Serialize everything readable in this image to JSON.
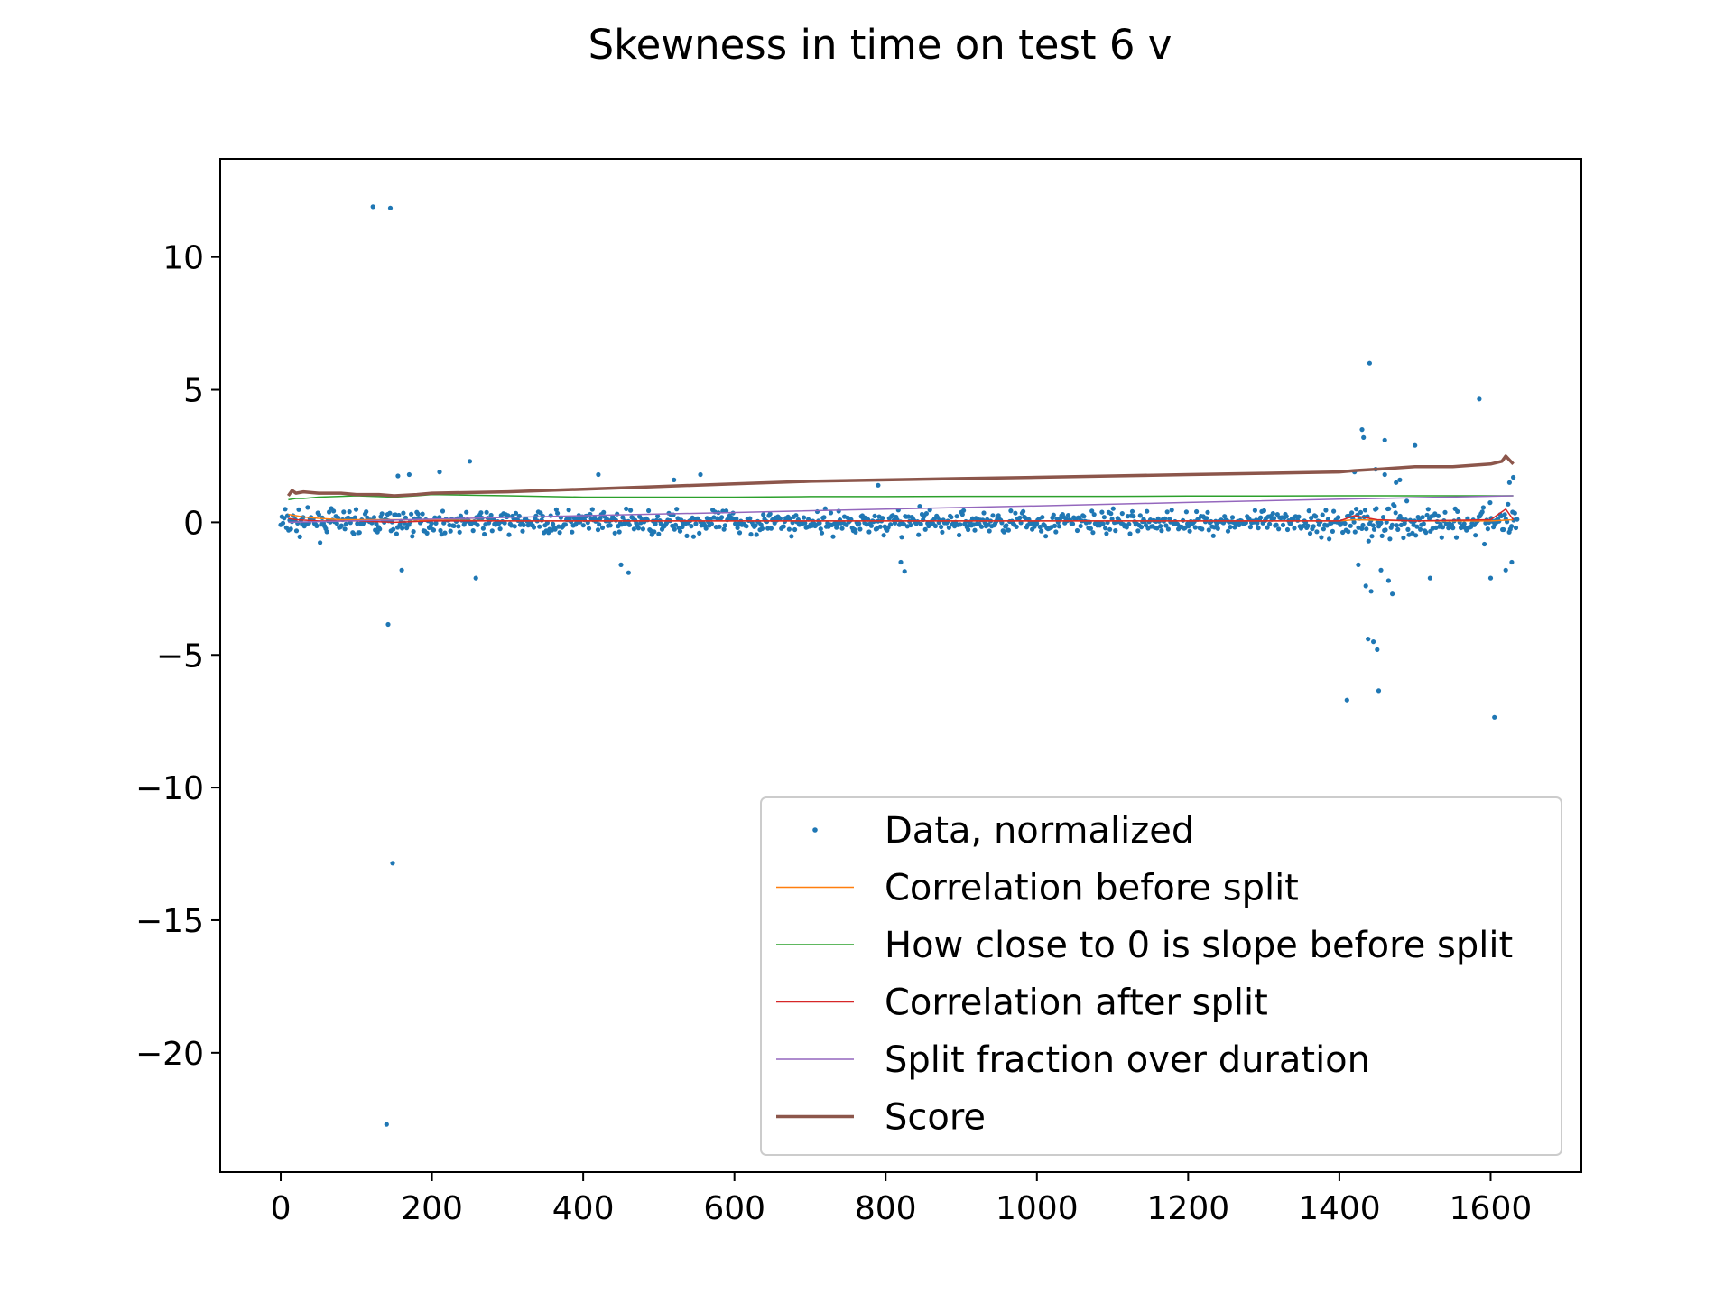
{
  "chart_data": {
    "type": "scatter",
    "title": "Skewness in time on test 6 v",
    "xlabel": "",
    "ylabel": "",
    "xlim": [
      -80,
      1720
    ],
    "ylim": [
      -24.5,
      13.7
    ],
    "xticks": [
      0,
      200,
      400,
      600,
      800,
      1000,
      1200,
      1400,
      1600
    ],
    "xtick_labels": [
      "0",
      "200",
      "400",
      "600",
      "800",
      "1000",
      "1200",
      "1400",
      "1600"
    ],
    "yticks": [
      10,
      5,
      0,
      -5,
      -10,
      -15,
      -20
    ],
    "ytick_labels": [
      "10",
      "5",
      "0",
      "−5",
      "−10",
      "−15",
      "−20"
    ],
    "legend_position": "lower-right",
    "grid": false,
    "series": [
      {
        "name": "Data, normalized",
        "kind": "scatter",
        "color": "#1f77b4",
        "band": {
          "x_start": 0,
          "x_end": 1635,
          "count": 1100,
          "center": 0.0,
          "spread": 0.45
        },
        "outliers": [
          [
            122,
            11.9
          ],
          [
            145,
            11.85
          ],
          [
            142,
            -3.85
          ],
          [
            148,
            -12.85
          ],
          [
            140,
            -22.7
          ],
          [
            155,
            1.75
          ],
          [
            170,
            1.8
          ],
          [
            160,
            -1.8
          ],
          [
            210,
            1.9
          ],
          [
            250,
            2.3
          ],
          [
            258,
            -2.1
          ],
          [
            420,
            1.8
          ],
          [
            450,
            -1.6
          ],
          [
            460,
            -1.9
          ],
          [
            520,
            1.6
          ],
          [
            555,
            1.8
          ],
          [
            790,
            1.4
          ],
          [
            820,
            -1.5
          ],
          [
            825,
            -1.85
          ],
          [
            1410,
            -6.7
          ],
          [
            1430,
            3.5
          ],
          [
            1432,
            3.2
          ],
          [
            1440,
            6.0
          ],
          [
            1445,
            -4.5
          ],
          [
            1450,
            -4.8
          ],
          [
            1452,
            -6.35
          ],
          [
            1438,
            -4.4
          ],
          [
            1435,
            -2.4
          ],
          [
            1442,
            -2.6
          ],
          [
            1448,
            2.0
          ],
          [
            1460,
            3.1
          ],
          [
            1465,
            -2.2
          ],
          [
            1470,
            -2.7
          ],
          [
            1480,
            1.6
          ],
          [
            1500,
            2.9
          ],
          [
            1520,
            -2.1
          ],
          [
            1460,
            1.8
          ],
          [
            1475,
            1.5
          ],
          [
            1455,
            -1.8
          ],
          [
            1420,
            1.9
          ],
          [
            1425,
            -1.6
          ],
          [
            1585,
            4.65
          ],
          [
            1605,
            -7.35
          ],
          [
            1600,
            -2.1
          ],
          [
            1620,
            -1.8
          ],
          [
            1625,
            1.5
          ],
          [
            1630,
            1.7
          ],
          [
            1628,
            -1.5
          ]
        ]
      },
      {
        "name": "Correlation before split",
        "kind": "line",
        "color": "#ff7f0e",
        "x": [
          10,
          20,
          30,
          50,
          80,
          150,
          300,
          500,
          700,
          900,
          1100,
          1300,
          1400,
          1420,
          1500,
          1600,
          1630
        ],
        "y": [
          0.3,
          0.25,
          0.2,
          0.15,
          0.1,
          0.1,
          0.05,
          0.05,
          0.05,
          0.05,
          0.05,
          0.05,
          0.05,
          0.1,
          0.05,
          0.05,
          0.1
        ]
      },
      {
        "name": "How close to 0 is slope before split",
        "kind": "line",
        "color": "#2ca02c",
        "x": [
          10,
          20,
          30,
          50,
          100,
          150,
          180,
          200,
          300,
          400,
          500,
          600,
          700,
          800,
          900,
          1000,
          1100,
          1200,
          1300,
          1400,
          1500,
          1600,
          1630
        ],
        "y": [
          0.85,
          0.9,
          0.9,
          0.95,
          1.0,
          0.95,
          1.0,
          1.05,
          1.0,
          0.95,
          0.95,
          0.95,
          0.97,
          0.97,
          0.98,
          0.98,
          0.98,
          0.99,
          0.99,
          1.0,
          1.0,
          1.0,
          1.0
        ]
      },
      {
        "name": "Correlation after split",
        "kind": "line",
        "color": "#d62728",
        "x": [
          10,
          20,
          50,
          100,
          150,
          200,
          400,
          600,
          800,
          1000,
          1200,
          1400,
          1420,
          1450,
          1500,
          1600,
          1620,
          1630
        ],
        "y": [
          0.15,
          0.1,
          0.05,
          0.05,
          0.0,
          0.05,
          0.05,
          0.05,
          0.05,
          0.05,
          0.05,
          0.05,
          0.25,
          0.1,
          0.05,
          0.1,
          0.5,
          0.1
        ]
      },
      {
        "name": "Split fraction over duration",
        "kind": "line",
        "color": "#9467bd",
        "x": [
          10,
          200,
          400,
          600,
          800,
          1000,
          1200,
          1400,
          1630
        ],
        "y": [
          0.0,
          0.12,
          0.25,
          0.37,
          0.5,
          0.62,
          0.75,
          0.87,
          1.0
        ]
      },
      {
        "name": "Score",
        "kind": "line",
        "color": "#8c564b",
        "x": [
          10,
          15,
          20,
          30,
          50,
          80,
          100,
          130,
          150,
          180,
          200,
          300,
          400,
          500,
          600,
          700,
          800,
          900,
          1000,
          1100,
          1200,
          1300,
          1400,
          1420,
          1450,
          1500,
          1550,
          1600,
          1615,
          1620,
          1625,
          1630
        ],
        "y": [
          1.0,
          1.2,
          1.1,
          1.15,
          1.1,
          1.1,
          1.05,
          1.05,
          1.0,
          1.05,
          1.1,
          1.15,
          1.25,
          1.35,
          1.45,
          1.55,
          1.6,
          1.65,
          1.7,
          1.75,
          1.8,
          1.85,
          1.9,
          1.95,
          2.0,
          2.1,
          2.1,
          2.2,
          2.3,
          2.5,
          2.35,
          2.2
        ]
      }
    ]
  }
}
